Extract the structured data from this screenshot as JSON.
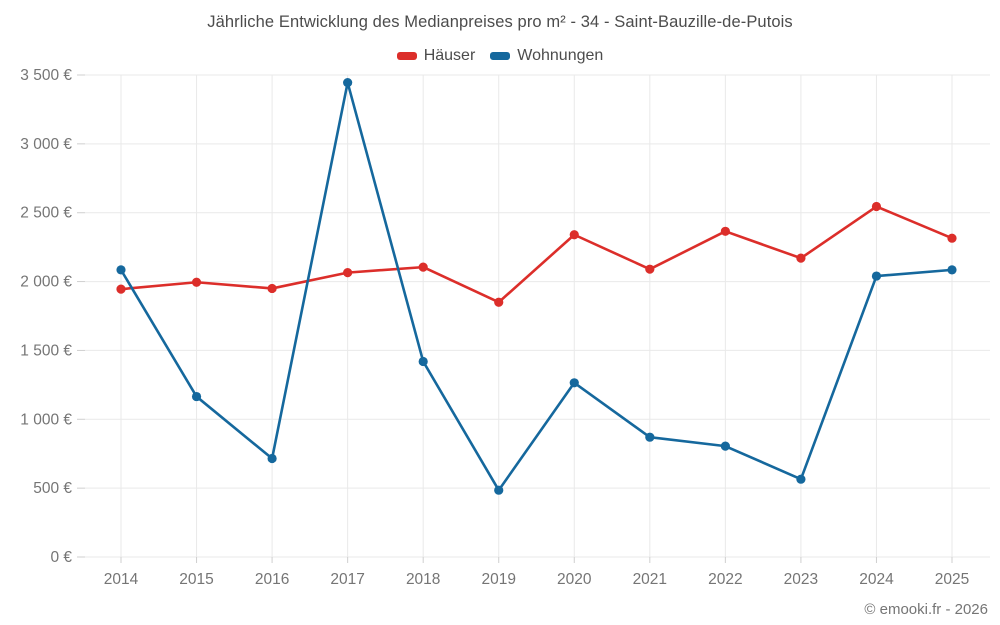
{
  "chart_data": {
    "type": "line",
    "title": "Jährliche Entwicklung des Medianpreises pro m² - 34 - Saint-Bauzille-de-Putois",
    "xlabel": "",
    "ylabel": "",
    "categories": [
      "2014",
      "2015",
      "2016",
      "2017",
      "2018",
      "2019",
      "2020",
      "2021",
      "2022",
      "2023",
      "2024",
      "2025"
    ],
    "series": [
      {
        "name": "Häuser",
        "color": "#dc2e2a",
        "values": [
          1945,
          1995,
          1950,
          2065,
          2105,
          1850,
          2340,
          2090,
          2365,
          2170,
          2545,
          2315
        ]
      },
      {
        "name": "Wohnungen",
        "color": "#15689d",
        "values": [
          2085,
          1165,
          715,
          3445,
          1420,
          485,
          1265,
          870,
          805,
          565,
          2040,
          2085
        ]
      }
    ],
    "ylim": [
      0,
      3500
    ],
    "yticks": [
      {
        "value": 0,
        "label": "0 €"
      },
      {
        "value": 500,
        "label": "500 €"
      },
      {
        "value": 1000,
        "label": "1 000 €"
      },
      {
        "value": 1500,
        "label": "1 500 €"
      },
      {
        "value": 2000,
        "label": "2 000 €"
      },
      {
        "value": 2500,
        "label": "2 500 €"
      },
      {
        "value": 3000,
        "label": "3 000 €"
      },
      {
        "value": 3500,
        "label": "3 500 €"
      }
    ],
    "grid": true,
    "legend_position": "top"
  },
  "colors": {
    "grid": "#e9e9e9",
    "tick": "#cfcfcf",
    "axis_label": "#757575",
    "title": "#4c4c4c"
  },
  "footer": {
    "text": "© emooki.fr - 2026"
  }
}
